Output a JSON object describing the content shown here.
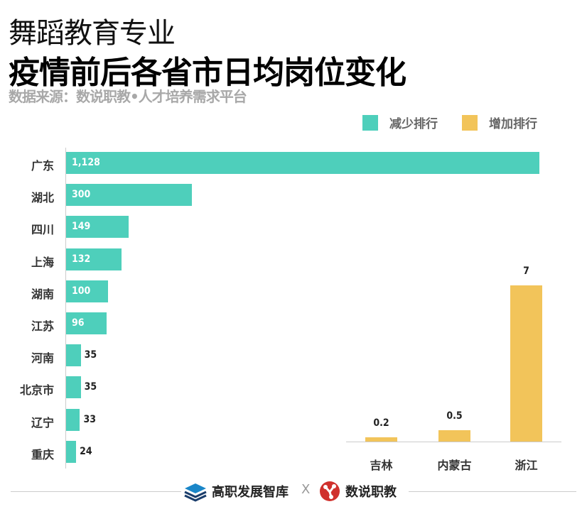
{
  "title_line1": "舞蹈教育专业",
  "title_line2": "疫情前后各省市日均岗位变化",
  "source": "数据来源：数说职教•人才培养需求平台",
  "legend": [
    {
      "label": "减少排行",
      "color": "#4ecfbb"
    },
    {
      "label": "增加排行",
      "color": "#f2c45a"
    }
  ],
  "chart_data": [
    {
      "type": "bar",
      "orientation": "horizontal",
      "series": [
        {
          "name": "减少排行",
          "color": "#4ecfbb"
        }
      ],
      "categories": [
        "广东",
        "湖北",
        "四川",
        "上海",
        "湖南",
        "江苏",
        "河南",
        "北京市",
        "辽宁",
        "重庆"
      ],
      "values": [
        1128,
        300,
        149,
        132,
        100,
        96,
        35,
        35,
        33,
        24
      ],
      "value_labels": [
        "1,128",
        "300",
        "149",
        "132",
        "100",
        "96",
        "35",
        "35",
        "33",
        "24"
      ]
    },
    {
      "type": "bar",
      "orientation": "vertical",
      "series": [
        {
          "name": "增加排行",
          "color": "#f2c45a"
        }
      ],
      "categories": [
        "吉林",
        "内蒙古",
        "浙江"
      ],
      "values": [
        0.2,
        0.5,
        7
      ],
      "value_labels": [
        "0.2",
        "0.5",
        "7"
      ]
    }
  ],
  "footer": {
    "brand1": "高职发展智库",
    "sep": "X",
    "brand2": "数说职教"
  }
}
